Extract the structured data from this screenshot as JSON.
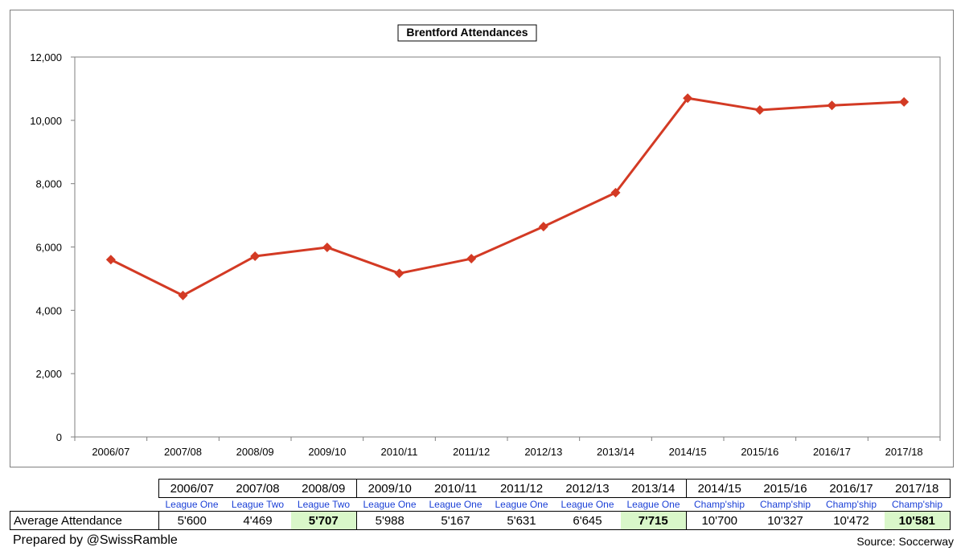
{
  "chart_data": {
    "type": "line",
    "title": "Brentford Attendances",
    "categories": [
      "2006/07",
      "2007/08",
      "2008/09",
      "2009/10",
      "2010/11",
      "2011/12",
      "2012/13",
      "2013/14",
      "2014/15",
      "2015/16",
      "2016/17",
      "2017/18"
    ],
    "series": [
      {
        "values": [
          5600,
          4469,
          5707,
          5988,
          5167,
          5631,
          6645,
          7715,
          10700,
          10327,
          10472,
          10581
        ]
      }
    ],
    "ylim": [
      0,
      12000
    ],
    "yticks": [
      "0",
      "2,000",
      "4,000",
      "6,000",
      "8,000",
      "10,000",
      "12,000"
    ],
    "grid": false,
    "legend": "none",
    "line_color": "#d33a24"
  },
  "table": {
    "seasons": [
      "2006/07",
      "2007/08",
      "2008/09",
      "2009/10",
      "2010/11",
      "2011/12",
      "2012/13",
      "2013/14",
      "2014/15",
      "2015/16",
      "2016/17",
      "2017/18"
    ],
    "leagues": [
      "League One",
      "League Two",
      "League Two",
      "League One",
      "League One",
      "League One",
      "League One",
      "League One",
      "Champ'ship",
      "Champ'ship",
      "Champ'ship",
      "Champ'ship"
    ],
    "row_label": "Average Attendance",
    "values": [
      "5'600",
      "4'469",
      "5'707",
      "5'988",
      "5'167",
      "5'631",
      "6'645",
      "7'715",
      "10'700",
      "10'327",
      "10'472",
      "10'581"
    ],
    "highlighted": [
      2,
      7,
      11
    ],
    "highlight_color": "#d9f7c9",
    "league_color": "#1a3fd6"
  },
  "footer": {
    "prepared_by": "Prepared by @SwissRamble",
    "source": "Source: Soccerway"
  }
}
